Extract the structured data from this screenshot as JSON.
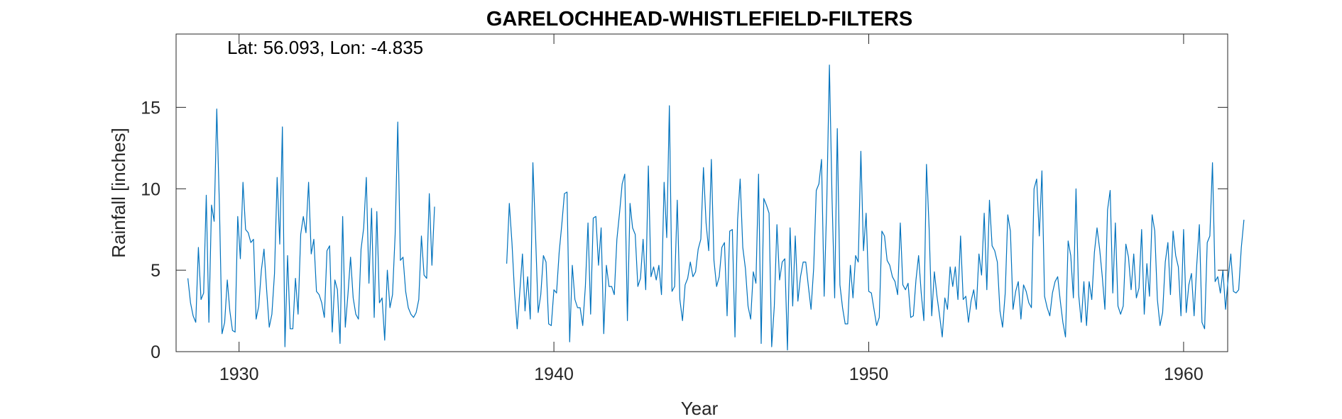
{
  "chart_data": {
    "type": "line",
    "title": "GARELOCHHEAD-WHISTLEFIELD-FILTERS",
    "annotation": "Lat: 56.093, Lon: -4.835",
    "xlabel": "Year",
    "ylabel": "Rainfall [inches]",
    "xlim": [
      1928.0,
      1961.4
    ],
    "ylim": [
      0,
      19.5
    ],
    "xticks": [
      1930,
      1940,
      1950,
      1960
    ],
    "yticks": [
      0,
      5,
      10,
      15
    ],
    "grid": false,
    "line_color": "#0072BD",
    "segments": [
      {
        "start": 1928.375,
        "step": 0.0833333,
        "values": [
          4.5,
          3.0,
          2.2,
          1.8,
          6.4,
          3.2,
          3.6,
          9.6,
          1.8,
          9.0,
          8.0,
          14.9,
          9.0,
          1.1,
          1.8,
          4.4,
          2.5,
          1.3,
          1.2,
          8.3,
          5.7,
          10.4,
          7.5,
          7.3,
          6.7,
          6.9,
          2.0,
          2.8,
          5.0,
          6.3,
          3.8,
          1.5,
          2.3,
          4.8,
          10.7,
          6.6,
          13.8,
          0.3,
          5.9,
          1.4,
          1.4,
          4.5,
          2.3,
          7.2,
          8.3,
          7.3,
          10.4,
          6.0,
          6.9,
          3.7,
          3.5,
          3.0,
          2.1,
          6.2,
          6.5,
          1.2,
          4.4,
          3.8,
          0.5,
          8.3,
          1.5,
          3.5,
          5.8,
          3.3,
          2.3,
          2.0,
          6.3,
          7.6,
          10.7,
          4.2,
          8.8,
          2.1,
          8.6,
          3.0,
          3.3,
          0.7,
          5.0,
          2.7,
          3.5,
          7.2,
          14.1,
          5.6,
          5.8,
          3.7,
          2.7,
          2.3,
          2.1,
          2.4,
          3.2,
          7.1,
          4.7,
          4.5,
          9.7,
          5.3,
          8.9
        ]
      },
      {
        "start": 1938.5,
        "step": 0.0833333,
        "values": [
          5.4,
          9.1,
          6.7,
          3.6,
          1.4,
          3.7,
          6.0,
          2.5,
          4.6,
          2.0,
          11.6,
          7.2,
          2.4,
          3.5,
          5.9,
          5.5,
          1.7,
          1.6,
          3.8,
          3.6,
          6.1,
          7.8,
          9.7,
          9.8,
          0.6,
          5.3,
          3.2,
          2.7,
          2.7,
          1.6,
          4.0,
          7.9,
          2.3,
          8.2,
          8.3,
          5.3,
          7.6,
          1.1,
          5.3,
          4.0,
          4.0,
          3.5,
          6.9,
          8.5,
          10.3,
          10.9,
          1.9,
          9.1,
          7.6,
          7.2,
          4.0,
          4.5,
          6.9,
          3.8,
          11.4,
          4.6,
          5.2,
          4.4,
          5.3,
          3.5,
          10.4,
          7.0,
          15.1,
          3.7,
          4.0,
          9.3,
          3.2,
          1.9,
          4.1,
          4.5,
          5.5,
          4.6,
          4.9,
          6.3,
          6.9,
          11.3,
          7.9,
          6.2,
          11.8,
          5.6,
          4.0,
          4.6,
          6.4,
          6.7,
          2.2,
          7.4,
          7.5,
          0.9,
          8.1,
          10.6,
          6.4,
          5.1,
          2.8,
          2.0,
          4.9,
          4.2,
          10.9,
          0.5,
          9.4,
          9.0,
          8.5,
          0.3,
          2.8,
          7.8,
          4.4,
          5.5,
          5.7,
          0.1,
          7.6,
          2.8,
          7.1,
          3.1,
          4.6,
          5.5,
          5.5,
          4.0,
          2.6,
          5.1,
          9.9,
          10.3,
          11.8,
          3.4,
          9.2,
          17.6,
          9.4,
          3.3,
          13.7,
          4.1,
          2.7,
          1.7,
          1.7,
          5.3,
          3.3,
          5.9,
          5.5,
          12.3,
          6.2,
          8.5,
          3.7,
          3.6,
          2.6,
          1.6,
          2.1,
          7.4,
          7.1,
          5.6,
          5.3,
          4.6,
          4.3,
          3.5,
          7.9,
          4.1,
          3.8,
          4.2,
          2.1,
          2.2,
          4.4,
          5.9,
          3.6,
          1.9,
          11.5,
          7.6,
          2.2,
          4.9,
          3.4,
          2.2,
          0.9,
          3.3,
          2.6,
          5.2,
          4.0,
          5.2,
          3.2,
          7.1,
          3.2,
          3.4,
          1.8,
          3.1,
          3.8,
          2.6,
          6.0,
          4.7,
          8.5,
          3.8,
          9.3,
          6.5,
          6.2,
          5.5,
          2.5,
          1.5,
          3.6,
          8.4,
          7.4,
          2.6,
          3.7,
          4.3,
          2.0,
          4.1,
          3.7,
          3.0,
          2.7,
          10.0,
          10.6,
          7.1,
          11.1,
          3.4,
          2.7,
          2.2,
          3.6,
          4.3,
          4.6,
          3.1,
          1.8,
          0.9,
          6.8,
          5.9,
          3.3,
          10.0,
          3.5,
          1.8,
          4.3,
          1.6,
          4.3,
          3.2,
          6.1,
          7.6,
          6.3,
          4.6,
          2.6,
          8.7,
          9.9,
          3.6,
          7.9,
          2.8,
          2.3,
          2.8,
          6.6,
          5.8,
          3.8,
          6.0,
          3.3,
          3.9,
          7.5,
          2.3,
          5.4,
          3.4,
          8.4,
          7.4,
          3.2,
          1.6,
          2.4,
          5.5,
          6.7,
          3.5,
          7.4,
          5.9,
          5.2,
          2.2,
          7.5,
          2.4,
          4.1,
          4.8,
          2.2,
          5.3,
          7.8,
          1.8,
          1.4,
          6.7,
          7.1,
          11.6,
          4.3,
          4.6,
          3.6,
          5.0,
          2.6,
          4.5,
          6.0,
          3.7,
          3.6,
          3.8,
          6.4,
          8.1
        ]
      }
    ]
  }
}
